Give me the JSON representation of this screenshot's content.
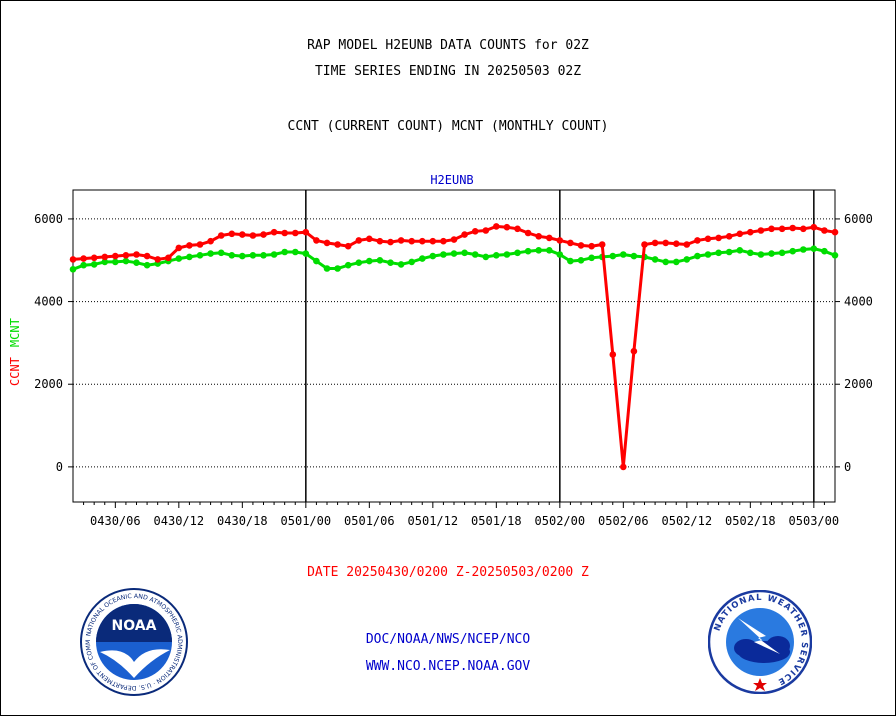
{
  "header": {
    "title": "RAP MODEL H2EUNB DATA COUNTS for 02Z",
    "subtitle": "TIME SERIES ENDING IN 20250503 02Z",
    "description": "CCNT (CURRENT COUNT) MCNT (MONTHLY COUNT)"
  },
  "footer": {
    "date_range": "DATE 20250430/0200 Z-20250503/0200 Z",
    "org_path": "DOC/NOAA/NWS/NCEP/NCO",
    "website": "WWW.NCO.NCEP.NOAA.GOV"
  },
  "logos": {
    "noaa": {
      "icon": "noaa-seal-icon",
      "text": "NOAA",
      "ring_text": "NATIONAL OCEANIC AND ATMOSPHERIC ADMINISTRATION · U.S. DEPARTMENT OF COMMERCE"
    },
    "nws": {
      "icon": "nws-seal-icon",
      "ring_text": "NATIONAL WEATHER SERVICE"
    }
  },
  "chart_data": {
    "type": "line",
    "title": "H2EUNB",
    "ylabel_parts": [
      {
        "text": "CCNT",
        "color": "#ff0000"
      },
      {
        "text": "MCNT",
        "color": "#00dd00"
      }
    ],
    "x_start_hours_label": "0430/02",
    "x_range": [
      0,
      72
    ],
    "ylim": [
      -850,
      6700
    ],
    "y_ticks": [
      0,
      2000,
      4000,
      6000
    ],
    "x_ticks": [
      {
        "x": 4,
        "label": "0430/06"
      },
      {
        "x": 10,
        "label": "0430/12"
      },
      {
        "x": 16,
        "label": "0430/18"
      },
      {
        "x": 22,
        "label": "0501/00"
      },
      {
        "x": 28,
        "label": "0501/06"
      },
      {
        "x": 34,
        "label": "0501/12"
      },
      {
        "x": 40,
        "label": "0501/18"
      },
      {
        "x": 46,
        "label": "0502/00"
      },
      {
        "x": 52,
        "label": "0502/06"
      },
      {
        "x": 58,
        "label": "0502/12"
      },
      {
        "x": 64,
        "label": "0502/18"
      },
      {
        "x": 70,
        "label": "0503/00"
      }
    ],
    "day_lines": [
      22,
      46,
      70
    ],
    "grid": "horizontal-dotted",
    "series": [
      {
        "key": "ccnt",
        "name": "CCNT",
        "color": "#ff0000",
        "x": [
          0,
          1,
          2,
          3,
          4,
          5,
          6,
          7,
          8,
          9,
          10,
          11,
          12,
          13,
          14,
          15,
          16,
          17,
          18,
          19,
          20,
          21,
          22,
          23,
          24,
          25,
          26,
          27,
          28,
          29,
          30,
          31,
          32,
          33,
          34,
          35,
          36,
          37,
          38,
          39,
          40,
          41,
          42,
          43,
          44,
          45,
          46,
          47,
          48,
          49,
          50,
          51,
          52,
          53,
          54,
          55,
          56,
          57,
          58,
          59,
          60,
          61,
          62,
          63,
          64,
          65,
          66,
          67,
          68,
          69,
          70,
          71,
          72
        ],
        "values": [
          5020,
          5040,
          5060,
          5080,
          5100,
          5120,
          5140,
          5100,
          5020,
          5060,
          5300,
          5360,
          5380,
          5460,
          5600,
          5640,
          5620,
          5600,
          5620,
          5680,
          5660,
          5660,
          5680,
          5480,
          5420,
          5380,
          5340,
          5480,
          5520,
          5460,
          5440,
          5480,
          5460,
          5460,
          5460,
          5460,
          5500,
          5620,
          5700,
          5720,
          5820,
          5800,
          5760,
          5660,
          5580,
          5540,
          5480,
          5420,
          5360,
          5340,
          5380,
          2720,
          0,
          2800,
          5380,
          5420,
          5420,
          5400,
          5380,
          5480,
          5520,
          5540,
          5580,
          5640,
          5680,
          5720,
          5760,
          5760,
          5780,
          5760,
          5800,
          5720,
          5680
        ]
      },
      {
        "key": "mcnt",
        "name": "MCNT",
        "color": "#00dd00",
        "x": [
          0,
          1,
          2,
          3,
          4,
          5,
          6,
          7,
          8,
          9,
          10,
          11,
          12,
          13,
          14,
          15,
          16,
          17,
          18,
          19,
          20,
          21,
          22,
          23,
          24,
          25,
          26,
          27,
          28,
          29,
          30,
          31,
          32,
          33,
          34,
          35,
          36,
          37,
          38,
          39,
          40,
          41,
          42,
          43,
          44,
          45,
          46,
          47,
          48,
          49,
          50,
          51,
          52,
          53,
          54,
          55,
          56,
          57,
          58,
          59,
          60,
          61,
          62,
          63,
          64,
          65,
          66,
          67,
          68,
          69,
          70,
          71,
          72
        ],
        "values": [
          4780,
          4880,
          4900,
          4960,
          4960,
          4980,
          4940,
          4880,
          4920,
          4980,
          5040,
          5080,
          5120,
          5160,
          5180,
          5120,
          5100,
          5120,
          5120,
          5140,
          5200,
          5200,
          5160,
          4980,
          4800,
          4800,
          4880,
          4940,
          4980,
          5000,
          4940,
          4900,
          4960,
          5040,
          5100,
          5140,
          5160,
          5180,
          5140,
          5080,
          5120,
          5140,
          5180,
          5220,
          5240,
          5240,
          5140,
          4980,
          5000,
          5060,
          5080,
          5100,
          5140,
          5100,
          5080,
          5020,
          4960,
          4960,
          5020,
          5100,
          5140,
          5180,
          5200,
          5240,
          5180,
          5140,
          5160,
          5180,
          5220,
          5260,
          5280,
          5220,
          5120
        ]
      }
    ]
  }
}
